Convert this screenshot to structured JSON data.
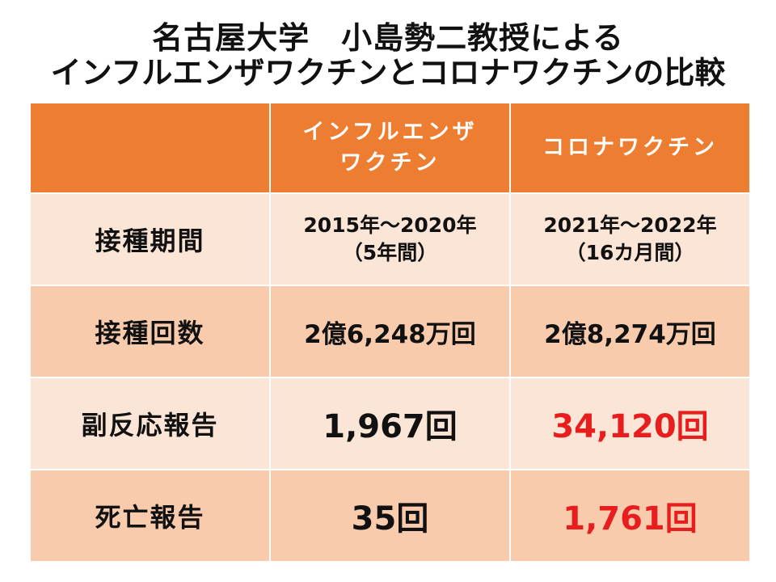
{
  "title": {
    "line1": "名古屋大学　小島勢二教授による",
    "line2": "インフルエンザワクチンとコロナワクチンの比較"
  },
  "table": {
    "header": {
      "corner": "",
      "col1_line1": "インフルエンザ",
      "col1_line2": "ワクチン",
      "col2": "コロナワクチン"
    },
    "rows": [
      {
        "label": "接種期間",
        "influenza_line1": "2015年～2020年",
        "influenza_line2": "（5年間）",
        "corona_line1": "2021年～2022年",
        "corona_line2": "（16カ月間）"
      },
      {
        "label": "接種回数",
        "influenza": "2億6,248万回",
        "corona": "2億8,274万回"
      },
      {
        "label": "副反応報告",
        "influenza": "1,967回",
        "corona": "34,120回"
      },
      {
        "label": "死亡報告",
        "influenza": "35回",
        "corona": "1,761回"
      }
    ]
  },
  "colors": {
    "header_bg": "#ed7d31",
    "row_light": "#fbe5d6",
    "row_dark": "#f8cbad",
    "highlight_red": "#e81e1e"
  }
}
